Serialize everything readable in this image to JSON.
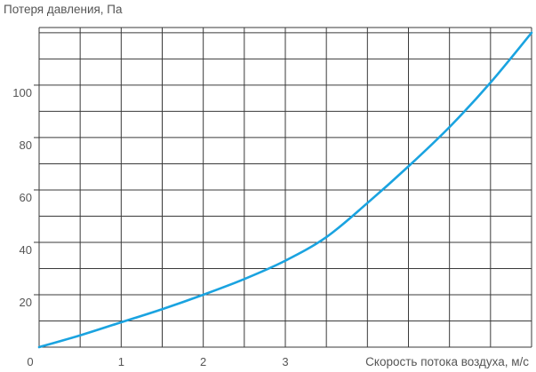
{
  "chart_data": {
    "type": "line",
    "title": "",
    "ylabel": "Потеря давления, Па",
    "xlabel": "Скорость потока воздуха, м/с",
    "xlim": [
      0,
      6
    ],
    "ylim": [
      0,
      122
    ],
    "x_ticks": [
      {
        "value": 0,
        "label": "0"
      },
      {
        "value": 1,
        "label": "1"
      },
      {
        "value": 2,
        "label": "2"
      },
      {
        "value": 3,
        "label": "3"
      }
    ],
    "y_ticks": [
      {
        "value": 20,
        "label": "20"
      },
      {
        "value": 40,
        "label": "40"
      },
      {
        "value": 60,
        "label": "60"
      },
      {
        "value": 80,
        "label": "80"
      },
      {
        "value": 100,
        "label": "100"
      }
    ],
    "grid": true,
    "series": [
      {
        "name": "",
        "color": "#1aa3e0",
        "x": [
          0,
          0.5,
          1.0,
          1.5,
          2.0,
          2.5,
          3.0,
          3.5,
          4.0,
          4.5,
          5.0,
          5.5,
          6.0
        ],
        "y": [
          0,
          4.5,
          9.5,
          14.5,
          20,
          26,
          33,
          42,
          55,
          69,
          84,
          101,
          120
        ]
      }
    ]
  }
}
